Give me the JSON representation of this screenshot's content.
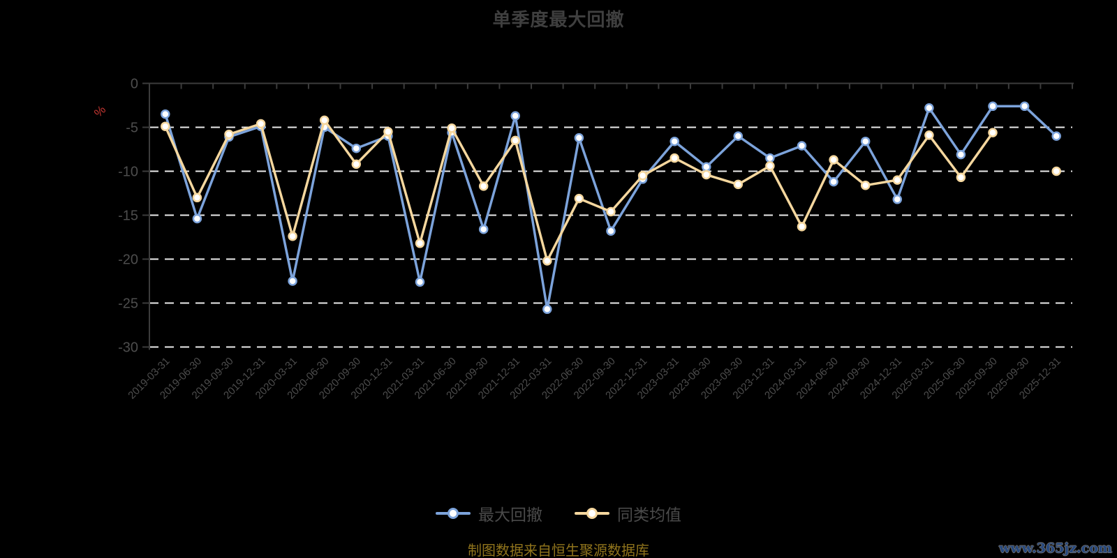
{
  "title": "单季度最大回撤",
  "y_axis": {
    "name": "%"
  },
  "legend": [
    {
      "label": "最大回撤",
      "color": "#7CA3DB"
    },
    {
      "label": "同类均值",
      "color": "#F5D79E"
    }
  ],
  "footer": {
    "source": "制图数据来自恒生聚源数据库",
    "watermark": "www.365jz.com"
  },
  "colors": {
    "background": "#000000",
    "grid": "#ececec",
    "axis": "#3c3c3c",
    "axis_label": "#4d4d4d",
    "title": "#3f3f3f",
    "unit_label": "#c23531",
    "series_max_drawdown": "#7CA3DB",
    "series_category_average": "#F5D79E",
    "marker_fill": "#ffffff"
  },
  "chart_data": {
    "type": "line",
    "title": "单季度最大回撤",
    "categories": [
      "2019-03-31",
      "2019-06-30",
      "2019-09-30",
      "2019-12-31",
      "2020-03-31",
      "2020-06-30",
      "2020-09-30",
      "2020-12-31",
      "2021-03-31",
      "2021-06-30",
      "2021-09-30",
      "2021-12-31",
      "2022-03-31",
      "2022-06-30",
      "2022-09-30",
      "2022-12-31",
      "2023-03-31",
      "2023-06-30",
      "2023-09-30",
      "2023-12-31",
      "2024-03-31",
      "2024-06-30",
      "2024-09-30",
      "2024-12-31",
      "2025-03-31",
      "2025-06-30",
      "2025-09-30",
      "2025-09-30",
      "2025-12-31"
    ],
    "series": [
      {
        "name": "最大回撤",
        "color": "#7CA3DB",
        "values": [
          -3.5,
          -15.4,
          -6.1,
          -4.9,
          -22.5,
          -5.0,
          -7.4,
          -6.0,
          -22.6,
          -5.6,
          -16.6,
          -3.7,
          -25.7,
          -6.2,
          -16.8,
          -10.9,
          -6.6,
          -9.5,
          -6.0,
          -8.5,
          -7.1,
          -11.2,
          -6.6,
          -13.2,
          -2.8,
          -8.1,
          -2.6,
          -2.6,
          -6.0
        ]
      },
      {
        "name": "同类均值",
        "color": "#F5D79E",
        "values": [
          -4.9,
          -13.0,
          -5.8,
          -4.6,
          -17.4,
          -4.2,
          -9.2,
          -5.5,
          -18.2,
          -5.1,
          -11.7,
          -6.5,
          -20.2,
          -13.1,
          -14.6,
          -10.5,
          -8.5,
          -10.4,
          -11.5,
          -9.4,
          -16.3,
          -8.7,
          -11.6,
          -11.0,
          -5.9,
          -10.7,
          -5.6,
          null,
          -10.0
        ]
      }
    ],
    "xlabel": "",
    "ylabel": "%",
    "ylim": [
      -30,
      0
    ],
    "y_ticks": [
      0,
      -5,
      -10,
      -15,
      -20,
      -25,
      -30
    ],
    "grid": "horizontal-dashed",
    "legend_position": "bottom",
    "x_label_rotation": 45
  }
}
